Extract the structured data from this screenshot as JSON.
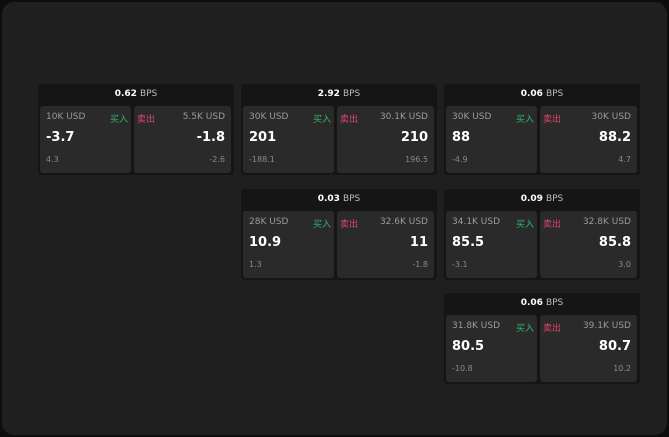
{
  "labels": {
    "buy": "买入",
    "sell": "卖出",
    "unit": "BPS"
  },
  "colors": {
    "buy": "#2fb86a",
    "sell": "#e0456f"
  },
  "cards": [
    {
      "spread": "0.62",
      "bid_size": "10K USD",
      "bid": "-3.7",
      "bid_change": "4.3",
      "ask_size": "5.5K USD",
      "ask": "-1.8",
      "ask_change": "-2.6"
    },
    {
      "spread": "2.92",
      "bid_size": "30K USD",
      "bid": "201",
      "bid_change": "-188.1",
      "ask_size": "30.1K USD",
      "ask": "210",
      "ask_change": "196.5"
    },
    {
      "spread": "0.06",
      "bid_size": "30K USD",
      "bid": "88",
      "bid_change": "-4.9",
      "ask_size": "30K USD",
      "ask": "88.2",
      "ask_change": "4.7"
    },
    {
      "spread": "0.03",
      "bid_size": "28K USD",
      "bid": "10.9",
      "bid_change": "1.3",
      "ask_size": "32.6K USD",
      "ask": "11",
      "ask_change": "-1.8"
    },
    {
      "spread": "0.09",
      "bid_size": "34.1K USD",
      "bid": "85.5",
      "bid_change": "-3.1",
      "ask_size": "32.8K USD",
      "ask": "85.8",
      "ask_change": "3.0"
    },
    {
      "spread": "0.06",
      "bid_size": "31.8K USD",
      "bid": "80.5",
      "bid_change": "-10.8",
      "ask_size": "39.1K USD",
      "ask": "80.7",
      "ask_change": "10.2"
    }
  ]
}
